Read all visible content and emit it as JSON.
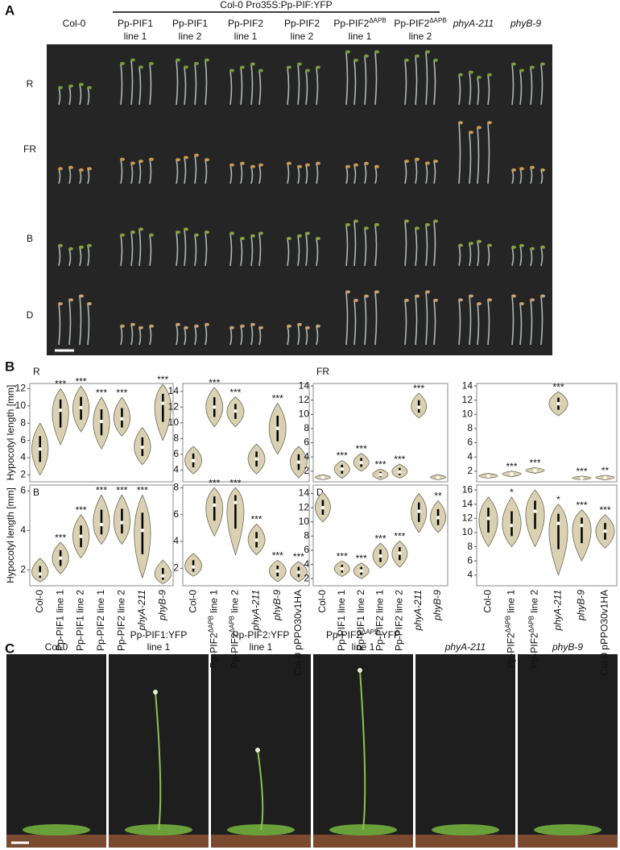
{
  "panel_labels": [
    "A",
    "B",
    "C"
  ],
  "panel_a": {
    "group_header": "Col-0 Pro35S:Pp-PIF:YFP",
    "columns": [
      [
        "Col-0"
      ],
      [
        "Pp-PIF1",
        "line 1"
      ],
      [
        "Pp-PIF1",
        "line 2"
      ],
      [
        "Pp-PIF2",
        "line 1"
      ],
      [
        "Pp-PIF2",
        "line 2"
      ],
      [
        [
          "Pp-PIF2",
          {
            "sup": "ΔAPB"
          }
        ],
        "line 1"
      ],
      [
        [
          "Pp-PIF2",
          {
            "sup": "ΔAPB"
          }
        ],
        "line 2"
      ],
      [
        [
          {
            "italic": "phyA-211"
          }
        ]
      ],
      [
        [
          {
            "italic": "phyB-9"
          }
        ]
      ]
    ],
    "rows": [
      "R",
      "FR",
      "B",
      "D"
    ]
  },
  "chart_data": [
    {
      "type": "violin",
      "label": "R",
      "ylabel": "Hypocotyl length [mm]",
      "categories": [
        null,
        null,
        null,
        null,
        null,
        null,
        null
      ],
      "min": [
        2,
        5.5,
        7,
        5,
        6.5,
        3.2,
        6
      ],
      "median": [
        5,
        9.5,
        9.8,
        8.2,
        8.5,
        5.2,
        10.3
      ],
      "max": [
        8,
        12,
        12.3,
        11,
        11,
        7.5,
        12.5
      ],
      "significance": [
        null,
        "***",
        "***",
        "***",
        "***",
        null,
        "***"
      ],
      "ylim": [
        1.2,
        12.6
      ],
      "yticks": [
        2,
        4,
        6,
        8,
        10,
        12
      ]
    },
    {
      "type": "violin",
      "categories": [
        null,
        null,
        null,
        null,
        null,
        null
      ],
      "min": [
        3.5,
        9.5,
        9.5,
        3.5,
        6,
        3
      ],
      "median": [
        5.2,
        12,
        11.5,
        5.4,
        9.3,
        5
      ],
      "max": [
        7,
        14.5,
        13.3,
        7.3,
        12.5,
        7
      ],
      "significance": [
        null,
        "***",
        "***",
        null,
        "***",
        null
      ],
      "ylim": [
        2.5,
        15
      ],
      "yticks": [
        4,
        6,
        8,
        10,
        12,
        14
      ]
    },
    {
      "type": "violin",
      "label": "FR",
      "categories": [
        null,
        null,
        null,
        null,
        null,
        null,
        null
      ],
      "min": [
        0.8,
        1,
        2,
        0.8,
        1,
        9.5,
        0.8
      ],
      "median": [
        1.1,
        2.3,
        3.2,
        1.5,
        1.9,
        11,
        1.1
      ],
      "max": [
        1.5,
        3.5,
        4.5,
        2.3,
        3,
        13,
        1.5
      ],
      "significance": [
        null,
        "***",
        "***",
        "***",
        "***",
        "***",
        null
      ],
      "ylim": [
        0.5,
        14.35
      ],
      "yticks": [
        2,
        4,
        6,
        8,
        10,
        12,
        14
      ]
    },
    {
      "type": "violin",
      "categories": [
        null,
        null,
        null,
        null,
        null,
        null
      ],
      "min": [
        1,
        1.2,
        1.7,
        9.8,
        0.8,
        0.8
      ],
      "median": [
        1.3,
        1.6,
        2.1,
        11.5,
        1,
        1.1
      ],
      "max": [
        1.7,
        2,
        2.5,
        13.2,
        1.3,
        1.4
      ],
      "significance": [
        null,
        "***",
        "***",
        "***",
        "***",
        "**"
      ],
      "ylim": [
        0.5,
        14.35
      ],
      "yticks": [
        2,
        4,
        6,
        8,
        10,
        12,
        14
      ]
    },
    {
      "type": "violin",
      "label": "B",
      "ylabel": "Hypocotyl length [mm]",
      "categories": [
        "Col-0",
        "Pp-PIF1 line 1",
        "Pp-PIF1 line 2",
        "Pp-PIF2 line 1",
        "Pp-PIF2 line 2",
        [
          {
            "italic": "phyA-211"
          }
        ],
        [
          {
            "italic": "phyB-9"
          }
        ]
      ],
      "min": [
        1.4,
        1.8,
        2.6,
        3.3,
        3.3,
        1.6,
        1.3
      ],
      "median": [
        1.8,
        2.6,
        3.7,
        4.3,
        4.4,
        4,
        1.7
      ],
      "max": [
        2.6,
        3.4,
        4.8,
        5.8,
        5.8,
        5.8,
        2.5
      ],
      "significance": [
        null,
        "***",
        "***",
        "***",
        "***",
        "***",
        null
      ],
      "ylim": [
        1.2,
        6.3
      ],
      "yticks": [
        2,
        4,
        6
      ]
    },
    {
      "type": "violin",
      "categories": [
        "Col-0",
        [
          "Pp-PIF2",
          {
            "sup": "ΔAPB"
          },
          " line 1"
        ],
        [
          "Pp-PIF2",
          {
            "sup": "ΔAPB"
          },
          " line 2"
        ],
        [
          {
            "italic": "phyA-211"
          }
        ],
        [
          {
            "italic": "phyB-9"
          }
        ],
        "Col-0 pPPO30v1HA"
      ],
      "min": [
        1.4,
        4.4,
        3,
        3,
        1,
        1
      ],
      "median": [
        2.1,
        6.7,
        6.9,
        4.1,
        1.8,
        1.7
      ],
      "max": [
        3.1,
        8,
        8,
        5.3,
        2.6,
        2.5
      ],
      "significance": [
        null,
        "***",
        "***",
        "***",
        "***",
        "***"
      ],
      "ylim": [
        0.7,
        8.2
      ],
      "yticks": [
        2,
        4,
        6,
        8
      ]
    },
    {
      "type": "violin",
      "label": "D",
      "categories": [
        "Col-0",
        "Pp-PIF1 line 1",
        "Pp-PIF1 line 2",
        "Pp-PIF2 line 1",
        "Pp-PIF2 line 2",
        [
          {
            "italic": "phyA-211"
          }
        ],
        [
          {
            "italic": "phyB-9"
          }
        ]
      ],
      "min": [
        10,
        2.3,
        2,
        3.5,
        3.6,
        8.5,
        8.5
      ],
      "median": [
        12,
        3.4,
        3.1,
        5.2,
        5.6,
        11.5,
        10.6
      ],
      "max": [
        14.2,
        4.5,
        4.2,
        7,
        7.3,
        14,
        13
      ],
      "significance": [
        null,
        "***",
        "***",
        "***",
        "***",
        null,
        "**"
      ],
      "ylim": [
        1,
        15.2
      ],
      "yticks": [
        2,
        4,
        6,
        8,
        10,
        12,
        14
      ]
    },
    {
      "type": "violin",
      "categories": [
        "Col-0",
        [
          "Pp-PIF2",
          {
            "sup": "ΔAPB"
          },
          " line 1"
        ],
        [
          "Pp-PIF2",
          {
            "sup": "ΔAPB"
          },
          " line 2"
        ],
        [
          {
            "italic": "phyA-211"
          }
        ],
        [
          {
            "italic": "phyB-9"
          }
        ],
        "Col-0 pPPO30v1HA"
      ],
      "min": [
        8,
        8,
        8,
        4,
        6,
        7.8
      ],
      "median": [
        12,
        11,
        13,
        11.3,
        11,
        10.2
      ],
      "max": [
        15,
        15,
        16,
        14,
        13.2,
        12.5
      ],
      "significance": [
        null,
        "*",
        null,
        "*",
        "***",
        "***"
      ],
      "ylim": [
        2.5,
        16.7
      ],
      "yticks": [
        4,
        6,
        8,
        10,
        12,
        14,
        16
      ]
    }
  ],
  "panel_c": {
    "labels": [
      [
        "Col-0"
      ],
      [
        "Pp-PIF1:YFP",
        "line 1"
      ],
      [
        "Pp-PIF2:YFP",
        "line 1"
      ],
      [
        [
          "Pp-PIF2",
          {
            "sup": "ΔAPB"
          },
          ":YFP"
        ],
        "line 1"
      ],
      [
        [
          {
            "italic": "phyA-211"
          }
        ]
      ],
      [
        [
          {
            "italic": "phyB-9"
          }
        ]
      ]
    ]
  }
}
